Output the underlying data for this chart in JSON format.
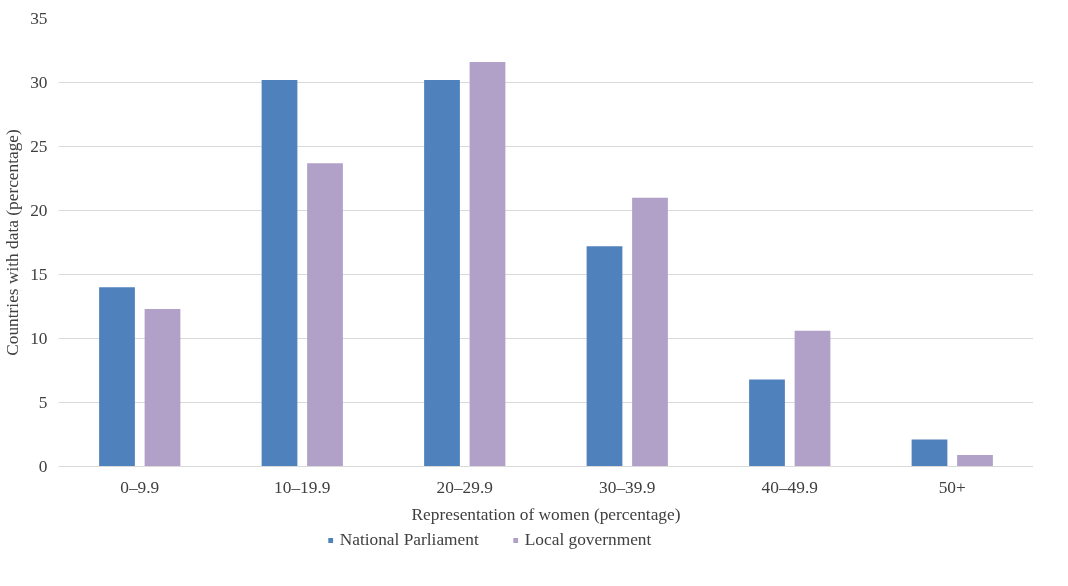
{
  "chart_data": {
    "type": "bar",
    "xlabel": "Representation of women (percentage)",
    "ylabel": "Countries with data (percentage)",
    "categories": [
      "0–9.9",
      "10–19.9",
      "20–29.9",
      "30–39.9",
      "40–49.9",
      "50+"
    ],
    "series": [
      {
        "name": "National Parliament",
        "color": "#4f81bd",
        "values": [
          14.0,
          30.2,
          30.2,
          17.2,
          6.8,
          2.1
        ]
      },
      {
        "name": "Local government",
        "color": "#b1a0c7",
        "values": [
          12.3,
          23.7,
          31.6,
          21.0,
          10.6,
          0.9
        ]
      }
    ],
    "ylim": [
      0,
      35
    ],
    "yticks": [
      0,
      5,
      10,
      15,
      20,
      25,
      30,
      35
    ],
    "grid": "y",
    "legend": "bottom"
  }
}
